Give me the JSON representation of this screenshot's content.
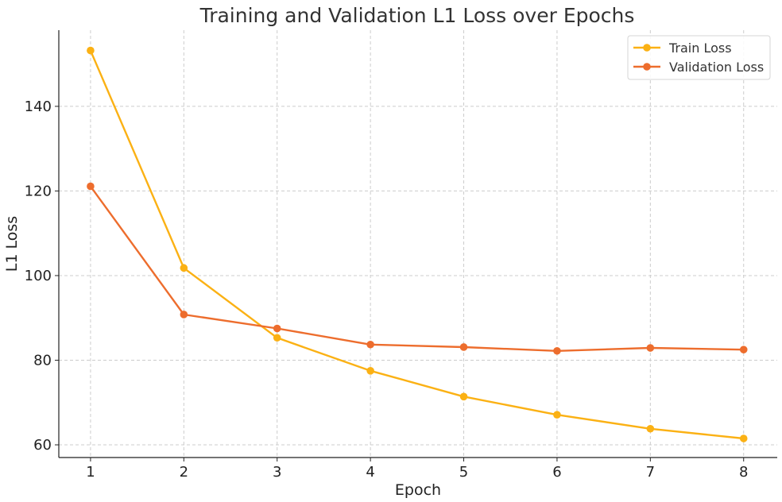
{
  "chart_data": {
    "type": "line",
    "title": "Training and Validation L1 Loss over Epochs",
    "xlabel": "Epoch",
    "ylabel": "L1 Loss",
    "x": [
      1,
      2,
      3,
      4,
      5,
      6,
      7,
      8
    ],
    "xticks": [
      "1",
      "2",
      "3",
      "4",
      "5",
      "6",
      "7",
      "8"
    ],
    "yticks": [
      "60",
      "80",
      "100",
      "120",
      "140"
    ],
    "xlim": [
      0.66,
      8.36
    ],
    "ylim": [
      57,
      158
    ],
    "grid": true,
    "legend_position": "top-right",
    "series": [
      {
        "name": "Train Loss",
        "color": "#fbb114",
        "values": [
          153.2,
          101.8,
          85.3,
          77.5,
          71.4,
          67.1,
          63.8,
          61.5
        ]
      },
      {
        "name": "Validation Loss",
        "color": "#ed6d2d",
        "values": [
          121.1,
          90.8,
          87.5,
          83.7,
          83.1,
          82.2,
          82.9,
          82.5
        ]
      }
    ]
  }
}
